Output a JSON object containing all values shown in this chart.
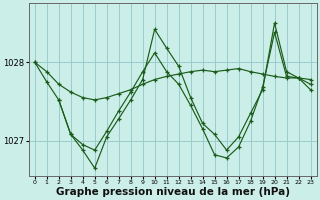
{
  "background_color": "#cceee8",
  "grid_color": "#99cccc",
  "line_color": "#1a5c1a",
  "marker_color": "#1a5c1a",
  "xlabel": "Graphe pression niveau de la mer (hPa)",
  "xlabel_fontsize": 7.5,
  "ytick_labels": [
    "1027",
    "1028"
  ],
  "yticks": [
    1027.0,
    1028.0
  ],
  "ylim": [
    1026.55,
    1028.75
  ],
  "xlim": [
    -0.5,
    23.5
  ],
  "xticks": [
    0,
    1,
    2,
    3,
    4,
    5,
    6,
    7,
    8,
    9,
    10,
    11,
    12,
    13,
    14,
    15,
    16,
    17,
    18,
    19,
    20,
    21,
    22,
    23
  ],
  "series": [
    {
      "x": [
        0,
        1,
        2,
        3,
        4,
        5,
        6,
        7,
        8,
        9,
        10,
        11,
        12,
        13,
        14,
        15,
        16,
        17,
        18,
        19,
        20,
        21,
        22,
        23
      ],
      "y": [
        1028.0,
        1027.88,
        1027.72,
        1027.62,
        1027.55,
        1027.52,
        1027.55,
        1027.6,
        1027.65,
        1027.72,
        1027.78,
        1027.82,
        1027.85,
        1027.88,
        1027.9,
        1027.88,
        1027.9,
        1027.92,
        1027.88,
        1027.85,
        1027.82,
        1027.8,
        1027.8,
        1027.78
      ]
    },
    {
      "x": [
        0,
        1,
        2,
        3,
        4,
        5,
        6,
        7,
        8,
        9,
        10,
        11,
        12,
        13,
        14,
        15,
        16,
        17,
        18,
        19,
        20,
        21,
        22,
        23
      ],
      "y": [
        1028.0,
        1027.75,
        1027.52,
        1027.08,
        1026.95,
        1026.88,
        1027.12,
        1027.38,
        1027.62,
        1027.88,
        1028.12,
        1027.88,
        1027.72,
        1027.45,
        1027.15,
        1026.82,
        1026.78,
        1026.92,
        1027.25,
        1027.68,
        1028.38,
        1027.82,
        1027.8,
        1027.72
      ]
    },
    {
      "x": [
        2,
        3,
        4,
        5,
        6,
        7,
        8,
        9,
        10,
        11,
        12,
        13,
        14,
        15,
        16,
        17,
        18,
        19,
        20,
        21,
        22,
        23
      ],
      "y": [
        1027.52,
        1027.08,
        1026.88,
        1026.65,
        1027.05,
        1027.28,
        1027.52,
        1027.78,
        1028.42,
        1028.18,
        1027.95,
        1027.55,
        1027.22,
        1027.08,
        1026.88,
        1027.05,
        1027.35,
        1027.65,
        1028.5,
        1027.88,
        1027.8,
        1027.65
      ]
    }
  ]
}
